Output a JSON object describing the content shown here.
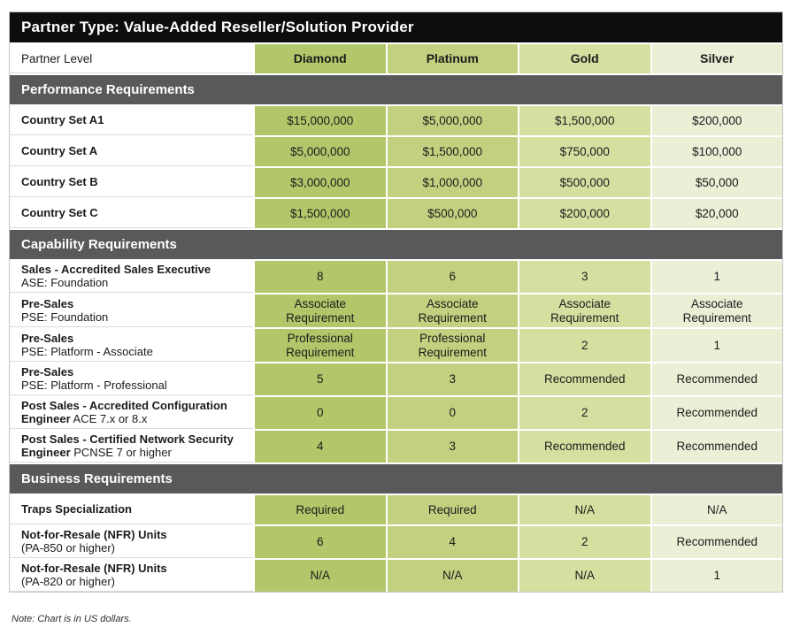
{
  "title": "Partner Type: Value-Added Reseller/Solution Provider",
  "partner_level_label": "Partner Level",
  "columns": [
    "Diamond",
    "Platinum",
    "Gold",
    "Silver"
  ],
  "note": "Note: Chart is in US dollars.",
  "colors": {
    "title_bg": "#0d0d0d",
    "section_bg": "#58595b",
    "diamond": "#b2c76a",
    "platinum": "#c2d17f",
    "gold": "#d5dfa0",
    "silver": "#eceed6"
  },
  "sections": [
    {
      "header": "Performance Requirements",
      "rows": [
        {
          "bold": "Country Set A1",
          "normal": "",
          "inline": true,
          "values": [
            "$15,000,000",
            "$5,000,000",
            "$1,500,000",
            "$200,000"
          ]
        },
        {
          "bold": "Country Set A",
          "normal": "",
          "inline": true,
          "values": [
            "$5,000,000",
            "$1,500,000",
            "$750,000",
            "$100,000"
          ]
        },
        {
          "bold": "Country Set B",
          "normal": "",
          "inline": true,
          "values": [
            "$3,000,000",
            "$1,000,000",
            "$500,000",
            "$50,000"
          ]
        },
        {
          "bold": "Country Set C",
          "normal": "",
          "inline": true,
          "values": [
            "$1,500,000",
            "$500,000",
            "$200,000",
            "$20,000"
          ]
        }
      ]
    },
    {
      "header": "Capability Requirements",
      "rows": [
        {
          "bold": "Sales - Accredited Sales Executive",
          "normal": "ASE: Foundation",
          "inline": false,
          "values": [
            "8",
            "6",
            "3",
            "1"
          ]
        },
        {
          "bold": "Pre-Sales",
          "normal": "PSE: Foundation",
          "inline": false,
          "values": [
            "Associate Requirement",
            "Associate Requirement",
            "Associate Requirement",
            "Associate Requirement"
          ]
        },
        {
          "bold": "Pre-Sales",
          "normal": "PSE: Platform - Associate",
          "inline": false,
          "values": [
            "Professional Requirement",
            "Professional Requirement",
            "2",
            "1"
          ]
        },
        {
          "bold": "Pre-Sales",
          "normal": "PSE: Platform - Professional",
          "inline": false,
          "values": [
            "5",
            "3",
            "Recommended",
            "Recommended"
          ]
        },
        {
          "bold": "Post Sales - Accredited Configuration Engineer",
          "normal": "ACE 7.x or 8.x",
          "inline": true,
          "values": [
            "0",
            "0",
            "2",
            "Recommended"
          ]
        },
        {
          "bold": "Post Sales - Certified Network Security Engineer",
          "normal": "PCNSE 7 or higher",
          "inline": true,
          "values": [
            "4",
            "3",
            "Recommended",
            "Recommended"
          ]
        }
      ]
    },
    {
      "header": "Business Requirements",
      "rows": [
        {
          "bold": "Traps Specialization",
          "normal": "",
          "inline": true,
          "values": [
            "Required",
            "Required",
            "N/A",
            "N/A"
          ]
        },
        {
          "bold": "Not-for-Resale (NFR) Units",
          "normal": "(PA-850 or higher)",
          "inline": false,
          "values": [
            "6",
            "4",
            "2",
            "Recommended"
          ]
        },
        {
          "bold": "Not-for-Resale (NFR) Units",
          "normal": "(PA-820 or higher)",
          "inline": false,
          "values": [
            "N/A",
            "N/A",
            "N/A",
            "1"
          ]
        }
      ]
    }
  ],
  "chart_data": {
    "type": "table",
    "title": "Partner Type: Value-Added Reseller/Solution Provider",
    "columns": [
      "Partner Level",
      "Diamond",
      "Platinum",
      "Gold",
      "Silver"
    ],
    "rows": [
      [
        "Performance Requirements",
        "",
        "",
        "",
        ""
      ],
      [
        "Country Set A1",
        "$15,000,000",
        "$5,000,000",
        "$1,500,000",
        "$200,000"
      ],
      [
        "Country Set A",
        "$5,000,000",
        "$1,500,000",
        "$750,000",
        "$100,000"
      ],
      [
        "Country Set B",
        "$3,000,000",
        "$1,000,000",
        "$500,000",
        "$50,000"
      ],
      [
        "Country Set C",
        "$1,500,000",
        "$500,000",
        "$200,000",
        "$20,000"
      ],
      [
        "Capability Requirements",
        "",
        "",
        "",
        ""
      ],
      [
        "Sales - Accredited Sales Executive ASE: Foundation",
        "8",
        "6",
        "3",
        "1"
      ],
      [
        "Pre-Sales PSE: Foundation",
        "Associate Requirement",
        "Associate Requirement",
        "Associate Requirement",
        "Associate Requirement"
      ],
      [
        "Pre-Sales PSE: Platform - Associate",
        "Professional Requirement",
        "Professional Requirement",
        "2",
        "1"
      ],
      [
        "Pre-Sales PSE: Platform - Professional",
        "5",
        "3",
        "Recommended",
        "Recommended"
      ],
      [
        "Post Sales - Accredited Configuration Engineer ACE 7.x or 8.x",
        "0",
        "0",
        "2",
        "Recommended"
      ],
      [
        "Post Sales - Certified Network Security Engineer PCNSE 7 or higher",
        "4",
        "3",
        "Recommended",
        "Recommended"
      ],
      [
        "Business Requirements",
        "",
        "",
        "",
        ""
      ],
      [
        "Traps Specialization",
        "Required",
        "Required",
        "N/A",
        "N/A"
      ],
      [
        "Not-for-Resale (NFR) Units (PA-850 or higher)",
        "6",
        "4",
        "2",
        "Recommended"
      ],
      [
        "Not-for-Resale (NFR) Units (PA-820 or higher)",
        "N/A",
        "N/A",
        "N/A",
        "1"
      ]
    ],
    "note": "Note: Chart is in US dollars."
  }
}
